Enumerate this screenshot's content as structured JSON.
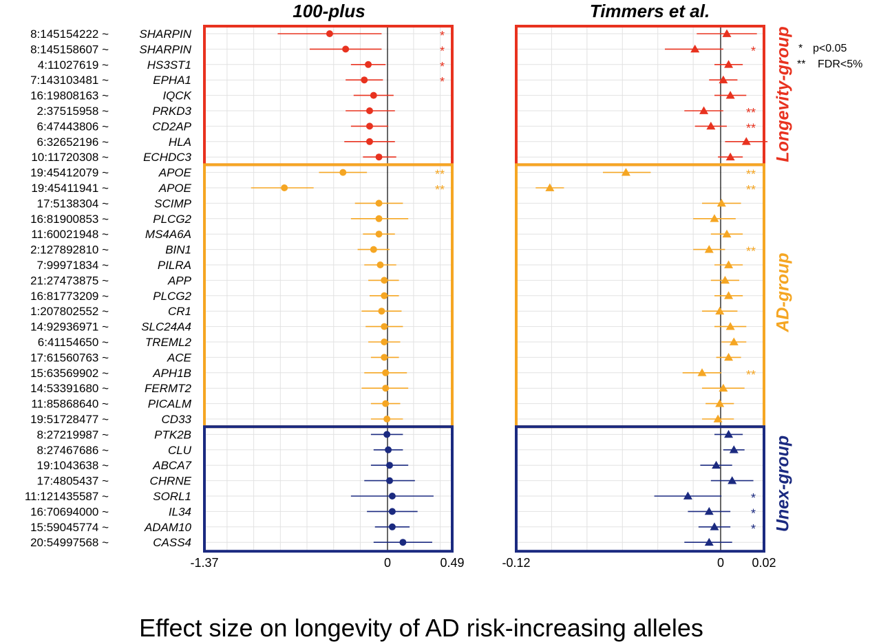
{
  "chart_data": {
    "type": "forest",
    "xlabel": "Effect size on longevity of AD risk-increasing alleles",
    "legend": {
      "position": "top-right",
      "entries": [
        {
          "symbol": "*",
          "label": "p<0.05"
        },
        {
          "symbol": "**",
          "label": "FDR<5%"
        }
      ]
    },
    "groups": [
      {
        "name": "Longevity-group",
        "color": "#e8321f"
      },
      {
        "name": "AD-group",
        "color": "#f5a623"
      },
      {
        "name": "Unex-group",
        "color": "#1b2a80"
      }
    ],
    "panels": [
      {
        "title": "100-plus",
        "marker": "circle",
        "xlim": [
          -1.37,
          0.49
        ],
        "ticks": [
          "-1.37",
          "0",
          "0.49"
        ]
      },
      {
        "title": "Timmers et al.",
        "marker": "triangle",
        "xlim": [
          -0.12,
          0.02
        ],
        "ticks": [
          "-0.12",
          "0",
          "0.02"
        ]
      }
    ],
    "rows": [
      {
        "snp": "8:145154222 ~",
        "gene": "SHARPIN",
        "group": 0,
        "p1": {
          "est": -0.43,
          "lo": -0.82,
          "hi": -0.04,
          "sig": "*"
        },
        "p2": {
          "est": -0.001,
          "lo": -0.018,
          "hi": 0.016,
          "sig": ""
        }
      },
      {
        "snp": "8:145158607 ~",
        "gene": "SHARPIN",
        "group": 0,
        "p1": {
          "est": -0.31,
          "lo": -0.58,
          "hi": -0.04,
          "sig": "*"
        },
        "p2": {
          "est": -0.019,
          "lo": -0.036,
          "hi": -0.003,
          "sig": "*"
        }
      },
      {
        "snp": "4:11027619 ~",
        "gene": "HS3ST1",
        "group": 0,
        "p1": {
          "est": -0.14,
          "lo": -0.27,
          "hi": -0.01,
          "sig": "*"
        },
        "p2": {
          "est": 0.0,
          "lo": -0.008,
          "hi": 0.008,
          "sig": ""
        }
      },
      {
        "snp": "7:143103481 ~",
        "gene": "EPHA1",
        "group": 0,
        "p1": {
          "est": -0.17,
          "lo": -0.31,
          "hi": -0.03,
          "sig": "*"
        },
        "p2": {
          "est": -0.003,
          "lo": -0.011,
          "hi": 0.005,
          "sig": ""
        }
      },
      {
        "snp": "16:19808163 ~",
        "gene": "IQCK",
        "group": 0,
        "p1": {
          "est": -0.1,
          "lo": -0.25,
          "hi": 0.05,
          "sig": ""
        },
        "p2": {
          "est": 0.001,
          "lo": -0.008,
          "hi": 0.01,
          "sig": ""
        }
      },
      {
        "snp": "2:37515958 ~",
        "gene": "PRKD3",
        "group": 0,
        "p1": {
          "est": -0.13,
          "lo": -0.31,
          "hi": 0.06,
          "sig": ""
        },
        "p2": {
          "est": -0.014,
          "lo": -0.025,
          "hi": -0.003,
          "sig": "**"
        }
      },
      {
        "snp": "6:47443806 ~",
        "gene": "CD2AP",
        "group": 0,
        "p1": {
          "est": -0.13,
          "lo": -0.27,
          "hi": 0.01,
          "sig": ""
        },
        "p2": {
          "est": -0.01,
          "lo": -0.019,
          "hi": -0.001,
          "sig": "**"
        }
      },
      {
        "snp": "6:32652196 ~",
        "gene": "HLA",
        "group": 0,
        "p1": {
          "est": -0.13,
          "lo": -0.32,
          "hi": 0.06,
          "sig": ""
        },
        "p2": {
          "est": 0.01,
          "lo": -0.002,
          "hi": 0.022,
          "sig": ""
        }
      },
      {
        "snp": "10:11720308 ~",
        "gene": "ECHDC3",
        "group": 0,
        "p1": {
          "est": -0.06,
          "lo": -0.18,
          "hi": 0.07,
          "sig": ""
        },
        "p2": {
          "est": 0.001,
          "lo": -0.006,
          "hi": 0.008,
          "sig": ""
        }
      },
      {
        "snp": "19:45412079 ~",
        "gene": "APOE",
        "group": 1,
        "p1": {
          "est": -0.33,
          "lo": -0.51,
          "hi": -0.15,
          "sig": "**"
        },
        "p2": {
          "est": -0.058,
          "lo": -0.071,
          "hi": -0.044,
          "sig": "**"
        }
      },
      {
        "snp": "19:45411941 ~",
        "gene": "APOE",
        "group": 1,
        "p1": {
          "est": -0.77,
          "lo": -1.02,
          "hi": -0.55,
          "sig": "**"
        },
        "p2": {
          "est": -0.101,
          "lo": -0.109,
          "hi": -0.093,
          "sig": "**"
        }
      },
      {
        "snp": "17:5138304 ~",
        "gene": "SCIMP",
        "group": 1,
        "p1": {
          "est": -0.06,
          "lo": -0.24,
          "hi": 0.12,
          "sig": ""
        },
        "p2": {
          "est": -0.004,
          "lo": -0.015,
          "hi": 0.007,
          "sig": ""
        }
      },
      {
        "snp": "16:81900853 ~",
        "gene": "PLCG2",
        "group": 1,
        "p1": {
          "est": -0.06,
          "lo": -0.27,
          "hi": 0.16,
          "sig": ""
        },
        "p2": {
          "est": -0.008,
          "lo": -0.02,
          "hi": 0.004,
          "sig": ""
        }
      },
      {
        "snp": "11:60021948 ~",
        "gene": "MS4A6A",
        "group": 1,
        "p1": {
          "est": -0.06,
          "lo": -0.18,
          "hi": 0.06,
          "sig": ""
        },
        "p2": {
          "est": -0.001,
          "lo": -0.01,
          "hi": 0.008,
          "sig": ""
        }
      },
      {
        "snp": "2:127892810 ~",
        "gene": "BIN1",
        "group": 1,
        "p1": {
          "est": -0.1,
          "lo": -0.22,
          "hi": 0.02,
          "sig": ""
        },
        "p2": {
          "est": -0.011,
          "lo": -0.02,
          "hi": -0.002,
          "sig": "**"
        }
      },
      {
        "snp": "7:99971834 ~",
        "gene": "PILRA",
        "group": 1,
        "p1": {
          "est": -0.05,
          "lo": -0.17,
          "hi": 0.07,
          "sig": ""
        },
        "p2": {
          "est": 0.0,
          "lo": -0.008,
          "hi": 0.008,
          "sig": ""
        }
      },
      {
        "snp": "21:27473875 ~",
        "gene": "APP",
        "group": 1,
        "p1": {
          "est": -0.02,
          "lo": -0.14,
          "hi": 0.09,
          "sig": ""
        },
        "p2": {
          "est": -0.002,
          "lo": -0.01,
          "hi": 0.006,
          "sig": ""
        }
      },
      {
        "snp": "16:81773209 ~",
        "gene": "PLCG2",
        "group": 1,
        "p1": {
          "est": -0.02,
          "lo": -0.13,
          "hi": 0.09,
          "sig": ""
        },
        "p2": {
          "est": 0.0,
          "lo": -0.008,
          "hi": 0.008,
          "sig": ""
        }
      },
      {
        "snp": "1:207802552 ~",
        "gene": "CR1",
        "group": 1,
        "p1": {
          "est": -0.04,
          "lo": -0.19,
          "hi": 0.11,
          "sig": ""
        },
        "p2": {
          "est": -0.005,
          "lo": -0.015,
          "hi": 0.005,
          "sig": ""
        }
      },
      {
        "snp": "14:92936971 ~",
        "gene": "SLC24A4",
        "group": 1,
        "p1": {
          "est": -0.02,
          "lo": -0.16,
          "hi": 0.12,
          "sig": ""
        },
        "p2": {
          "est": 0.001,
          "lo": -0.008,
          "hi": 0.01,
          "sig": ""
        }
      },
      {
        "snp": "6:41154650 ~",
        "gene": "TREML2",
        "group": 1,
        "p1": {
          "est": -0.02,
          "lo": -0.14,
          "hi": 0.1,
          "sig": ""
        },
        "p2": {
          "est": 0.003,
          "lo": -0.004,
          "hi": 0.01,
          "sig": ""
        }
      },
      {
        "snp": "17:61560763 ~",
        "gene": "ACE",
        "group": 1,
        "p1": {
          "est": -0.02,
          "lo": -0.12,
          "hi": 0.09,
          "sig": ""
        },
        "p2": {
          "est": 0.0,
          "lo": -0.007,
          "hi": 0.007,
          "sig": ""
        }
      },
      {
        "snp": "15:63569902 ~",
        "gene": "APH1B",
        "group": 1,
        "p1": {
          "est": -0.01,
          "lo": -0.17,
          "hi": 0.15,
          "sig": ""
        },
        "p2": {
          "est": -0.015,
          "lo": -0.026,
          "hi": -0.004,
          "sig": "**"
        }
      },
      {
        "snp": "14:53391680 ~",
        "gene": "FERMT2",
        "group": 1,
        "p1": {
          "est": -0.01,
          "lo": -0.19,
          "hi": 0.16,
          "sig": ""
        },
        "p2": {
          "est": -0.003,
          "lo": -0.015,
          "hi": 0.009,
          "sig": ""
        }
      },
      {
        "snp": "11:85868640 ~",
        "gene": "PICALM",
        "group": 1,
        "p1": {
          "est": -0.01,
          "lo": -0.12,
          "hi": 0.1,
          "sig": ""
        },
        "p2": {
          "est": -0.005,
          "lo": -0.013,
          "hi": 0.003,
          "sig": ""
        }
      },
      {
        "snp": "19:51728477 ~",
        "gene": "CD33",
        "group": 1,
        "p1": {
          "est": 0.0,
          "lo": -0.12,
          "hi": 0.12,
          "sig": ""
        },
        "p2": {
          "est": -0.006,
          "lo": -0.015,
          "hi": 0.003,
          "sig": ""
        }
      },
      {
        "snp": "8:27219987 ~",
        "gene": "PTK2B",
        "group": 2,
        "p1": {
          "est": 0.0,
          "lo": -0.12,
          "hi": 0.12,
          "sig": ""
        },
        "p2": {
          "est": 0.0,
          "lo": -0.008,
          "hi": 0.008,
          "sig": ""
        }
      },
      {
        "snp": "8:27467686 ~",
        "gene": "CLU",
        "group": 2,
        "p1": {
          "est": 0.01,
          "lo": -0.1,
          "hi": 0.12,
          "sig": ""
        },
        "p2": {
          "est": 0.003,
          "lo": -0.003,
          "hi": 0.009,
          "sig": ""
        }
      },
      {
        "snp": "19:1043638 ~",
        "gene": "ABCA7",
        "group": 2,
        "p1": {
          "est": 0.02,
          "lo": -0.12,
          "hi": 0.16,
          "sig": ""
        },
        "p2": {
          "est": -0.007,
          "lo": -0.016,
          "hi": 0.002,
          "sig": ""
        }
      },
      {
        "snp": "17:4805437 ~",
        "gene": "CHRNE",
        "group": 2,
        "p1": {
          "est": 0.02,
          "lo": -0.17,
          "hi": 0.21,
          "sig": ""
        },
        "p2": {
          "est": 0.002,
          "lo": -0.01,
          "hi": 0.014,
          "sig": ""
        }
      },
      {
        "snp": "11:121435587 ~",
        "gene": "SORL1",
        "group": 2,
        "p1": {
          "est": 0.04,
          "lo": -0.27,
          "hi": 0.35,
          "sig": ""
        },
        "p2": {
          "est": -0.023,
          "lo": -0.042,
          "hi": -0.004,
          "sig": "*"
        }
      },
      {
        "snp": "16:70694000 ~",
        "gene": "IL34",
        "group": 2,
        "p1": {
          "est": 0.04,
          "lo": -0.15,
          "hi": 0.23,
          "sig": ""
        },
        "p2": {
          "est": -0.011,
          "lo": -0.023,
          "hi": 0.001,
          "sig": "*"
        }
      },
      {
        "snp": "15:59045774 ~",
        "gene": "ADAM10",
        "group": 2,
        "p1": {
          "est": 0.04,
          "lo": -0.09,
          "hi": 0.17,
          "sig": ""
        },
        "p2": {
          "est": -0.008,
          "lo": -0.017,
          "hi": 0.001,
          "sig": "*"
        }
      },
      {
        "snp": "20:54997568 ~",
        "gene": "CASS4",
        "group": 2,
        "p1": {
          "est": 0.12,
          "lo": -0.1,
          "hi": 0.34,
          "sig": ""
        },
        "p2": {
          "est": -0.011,
          "lo": -0.025,
          "hi": 0.002,
          "sig": ""
        }
      }
    ]
  }
}
